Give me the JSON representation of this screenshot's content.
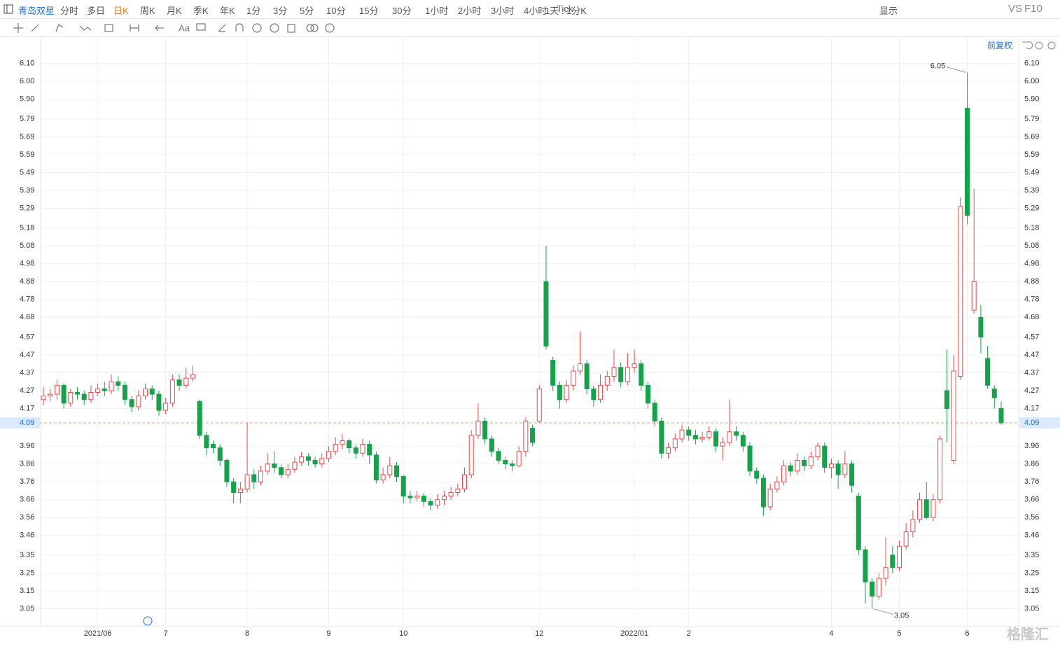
{
  "toolbar": {
    "stock": "青岛双星",
    "periods": [
      "分时",
      "多日",
      "日K",
      "周K",
      "月K",
      "季K",
      "年K",
      "1分",
      "3分",
      "5分",
      "10分",
      "15分",
      "30分",
      "1小时",
      "2小时",
      "3小时",
      "4小时",
      "Tick"
    ],
    "active_period": 2,
    "ratio": "1天 : 1分K",
    "display": "显示",
    "vs": "VS",
    "f10": "F10"
  },
  "chart_controls": {
    "adjust": "前复权"
  },
  "watermark": "格隆汇",
  "chart_data": {
    "type": "candlestick",
    "categories": [
      null,
      null,
      null,
      null,
      null,
      null,
      null,
      null,
      "2021/06",
      null,
      null,
      null,
      null,
      null,
      null,
      null,
      null,
      null,
      "7",
      null,
      null,
      null,
      null,
      null,
      null,
      null,
      null,
      null,
      null,
      null,
      "8",
      null,
      null,
      null,
      null,
      null,
      null,
      null,
      null,
      null,
      null,
      null,
      "9",
      null,
      null,
      null,
      null,
      null,
      null,
      null,
      null,
      null,
      null,
      "10",
      null,
      null,
      null,
      null,
      null,
      null,
      null,
      null,
      null,
      null,
      null,
      null,
      null,
      null,
      null,
      null,
      null,
      null,
      null,
      "12",
      null,
      null,
      null,
      null,
      null,
      null,
      null,
      null,
      null,
      null,
      null,
      null,
      null,
      "2022/01",
      null,
      null,
      null,
      null,
      null,
      null,
      null,
      "2",
      null,
      null,
      null,
      null,
      null,
      null,
      null,
      null,
      null,
      null,
      null,
      null,
      null,
      null,
      null,
      null,
      null,
      null,
      null,
      null,
      "4",
      null,
      null,
      null,
      null,
      null,
      null,
      null,
      null,
      null,
      "5",
      null,
      null,
      null,
      null,
      null,
      null,
      null,
      null,
      null,
      "6",
      null,
      null,
      null,
      null,
      null
    ],
    "open": [
      4.22,
      4.24,
      4.25,
      4.3,
      4.2,
      4.26,
      4.25,
      4.22,
      4.26,
      4.28,
      4.27,
      4.32,
      4.3,
      4.22,
      4.18,
      4.24,
      4.28,
      4.25,
      4.16,
      4.2,
      4.33,
      4.3,
      4.34,
      4.21,
      4.02,
      3.97,
      3.95,
      3.88,
      3.76,
      3.7,
      3.72,
      3.8,
      3.76,
      3.82,
      3.86,
      3.84,
      3.8,
      3.83,
      3.87,
      3.9,
      3.88,
      3.86,
      3.89,
      3.93,
      3.97,
      3.99,
      3.95,
      3.92,
      3.97,
      3.91,
      3.77,
      3.8,
      3.85,
      3.79,
      3.68,
      3.67,
      3.68,
      3.65,
      3.63,
      3.66,
      3.68,
      3.7,
      3.72,
      3.8,
      4.02,
      4.1,
      4.0,
      3.93,
      3.88,
      3.86,
      3.85,
      3.93,
      4.06,
      4.1,
      4.88,
      4.44,
      4.3,
      4.22,
      4.3,
      4.38,
      4.42,
      4.28,
      4.22,
      4.3,
      4.35,
      4.4,
      4.32,
      4.4,
      4.42,
      4.3,
      4.2,
      4.1,
      3.92,
      3.95,
      4.0,
      4.05,
      4.02,
      4.0,
      4.01,
      4.04,
      3.96,
      3.98,
      4.04,
      4.02,
      3.96,
      3.82,
      3.78,
      3.62,
      3.72,
      3.76,
      3.85,
      3.82,
      3.88,
      3.85,
      3.9,
      3.96,
      3.84,
      3.86,
      3.8,
      3.86,
      3.68,
      3.38,
      3.2,
      3.12,
      3.22,
      3.35,
      3.28,
      3.4,
      3.48,
      3.55,
      3.66,
      3.56,
      3.66,
      4.27,
      3.88,
      4.35,
      5.85,
      4.72,
      4.68,
      4.45,
      4.28,
      4.17
    ],
    "high": [
      4.29,
      4.28,
      4.33,
      4.31,
      4.28,
      4.29,
      4.27,
      4.3,
      4.31,
      4.32,
      4.36,
      4.35,
      4.32,
      4.24,
      4.27,
      4.31,
      4.3,
      4.27,
      4.23,
      4.36,
      4.36,
      4.4,
      4.41,
      4.22,
      4.04,
      3.99,
      3.97,
      3.89,
      3.78,
      3.76,
      4.09,
      3.83,
      3.85,
      3.92,
      3.93,
      3.86,
      3.86,
      3.9,
      3.93,
      3.92,
      3.9,
      3.92,
      3.96,
      4.01,
      4.03,
      4.0,
      3.97,
      4.0,
      3.99,
      3.93,
      3.84,
      3.9,
      3.87,
      3.8,
      3.71,
      3.71,
      3.7,
      3.67,
      3.69,
      3.71,
      3.73,
      3.75,
      3.84,
      4.05,
      4.2,
      4.12,
      4.02,
      3.95,
      3.9,
      3.88,
      3.96,
      4.12,
      4.08,
      4.3,
      5.08,
      4.46,
      4.32,
      4.33,
      4.41,
      4.6,
      4.44,
      4.3,
      4.36,
      4.38,
      4.5,
      4.43,
      4.48,
      4.5,
      4.44,
      4.32,
      4.22,
      4.12,
      3.98,
      4.03,
      4.08,
      4.07,
      4.05,
      4.04,
      4.07,
      4.06,
      4.01,
      4.22,
      4.07,
      4.04,
      3.98,
      3.84,
      3.8,
      3.75,
      3.79,
      3.88,
      3.87,
      3.92,
      3.9,
      3.93,
      3.98,
      3.98,
      3.89,
      3.88,
      3.93,
      3.88,
      3.7,
      3.4,
      3.22,
      3.25,
      3.45,
      3.4,
      3.43,
      3.53,
      3.6,
      3.7,
      3.76,
      3.69,
      4.02,
      4.5,
      4.47,
      5.35,
      6.05,
      5.4,
      4.75,
      4.52,
      4.3,
      4.21
    ],
    "low": [
      4.19,
      4.21,
      4.22,
      4.17,
      4.18,
      4.22,
      4.19,
      4.2,
      4.24,
      4.24,
      4.25,
      4.27,
      4.19,
      4.15,
      4.16,
      4.22,
      4.22,
      4.13,
      4.14,
      4.18,
      4.27,
      4.28,
      4.32,
      4.0,
      3.91,
      3.92,
      3.85,
      3.73,
      3.64,
      3.64,
      3.7,
      3.72,
      3.74,
      3.8,
      3.81,
      3.78,
      3.78,
      3.81,
      3.85,
      3.85,
      3.84,
      3.84,
      3.87,
      3.91,
      3.94,
      3.92,
      3.89,
      3.9,
      3.86,
      3.75,
      3.75,
      3.78,
      3.76,
      3.64,
      3.64,
      3.65,
      3.62,
      3.6,
      3.61,
      3.63,
      3.66,
      3.68,
      3.7,
      3.78,
      4.0,
      3.97,
      3.9,
      3.86,
      3.83,
      3.82,
      3.84,
      3.9,
      3.96,
      4.09,
      4.5,
      4.27,
      4.17,
      4.2,
      4.27,
      4.36,
      4.25,
      4.18,
      4.2,
      4.27,
      4.32,
      4.29,
      4.3,
      4.37,
      4.27,
      4.17,
      4.07,
      3.89,
      3.89,
      3.93,
      3.98,
      3.99,
      3.97,
      3.98,
      3.99,
      3.93,
      3.88,
      3.96,
      3.99,
      3.93,
      3.79,
      3.75,
      3.57,
      3.6,
      3.7,
      3.74,
      3.79,
      3.8,
      3.82,
      3.83,
      3.88,
      3.81,
      3.78,
      3.72,
      3.78,
      3.7,
      3.35,
      3.08,
      3.05,
      3.1,
      3.18,
      3.25,
      3.26,
      3.38,
      3.45,
      3.53,
      3.55,
      3.54,
      3.64,
      3.98,
      3.86,
      4.33,
      5.2,
      4.7,
      4.48,
      4.28,
      4.17,
      4.08
    ],
    "close": [
      4.24,
      4.25,
      4.3,
      4.2,
      4.26,
      4.25,
      4.22,
      4.26,
      4.28,
      4.27,
      4.32,
      4.3,
      4.22,
      4.18,
      4.24,
      4.28,
      4.25,
      4.16,
      4.2,
      4.33,
      4.3,
      4.34,
      4.36,
      4.02,
      3.95,
      3.95,
      3.88,
      3.76,
      3.7,
      3.72,
      3.8,
      3.76,
      3.82,
      3.86,
      3.84,
      3.8,
      3.83,
      3.87,
      3.9,
      3.88,
      3.86,
      3.89,
      3.93,
      3.97,
      3.99,
      3.95,
      3.92,
      3.97,
      3.91,
      3.77,
      3.8,
      3.85,
      3.79,
      3.68,
      3.67,
      3.68,
      3.65,
      3.63,
      3.66,
      3.68,
      3.7,
      3.72,
      3.8,
      4.02,
      4.1,
      4.0,
      3.93,
      3.88,
      3.86,
      3.85,
      3.93,
      4.1,
      3.98,
      4.28,
      4.52,
      4.3,
      4.22,
      4.3,
      4.38,
      4.42,
      4.28,
      4.22,
      4.3,
      4.35,
      4.4,
      4.32,
      4.4,
      4.42,
      4.3,
      4.2,
      4.1,
      3.92,
      3.95,
      4.0,
      4.05,
      4.02,
      4.0,
      4.01,
      4.04,
      3.96,
      3.98,
      4.04,
      4.02,
      3.96,
      3.82,
      3.78,
      3.62,
      3.72,
      3.76,
      3.85,
      3.82,
      3.88,
      3.85,
      3.9,
      3.96,
      3.84,
      3.86,
      3.8,
      3.86,
      3.74,
      3.38,
      3.2,
      3.12,
      3.22,
      3.28,
      3.28,
      3.4,
      3.48,
      3.55,
      3.66,
      3.56,
      3.66,
      4.0,
      4.17,
      4.38,
      5.3,
      5.25,
      4.88,
      4.57,
      4.3,
      4.23,
      4.09
    ],
    "up_color": "#e9494b",
    "down_color": "#15a34a",
    "ylim": [
      2.95,
      6.15
    ],
    "yticks": [
      {
        "value": 6.1,
        "label": "6.10"
      },
      {
        "value": 6.0,
        "label": "6.00"
      },
      {
        "value": 5.9,
        "label": "5.90"
      },
      5.79,
      5.69,
      5.59,
      5.49,
      5.39,
      5.29,
      5.18,
      5.08,
      4.98,
      4.88,
      4.78,
      4.68,
      4.57,
      4.47,
      4.37,
      4.27,
      4.17,
      3.96,
      3.86,
      3.76,
      3.66,
      3.56,
      3.46,
      3.35,
      3.25,
      3.15,
      3.05
    ],
    "grid": true,
    "last_price": 4.09,
    "high_label": 6.05,
    "low_label": 3.05
  }
}
